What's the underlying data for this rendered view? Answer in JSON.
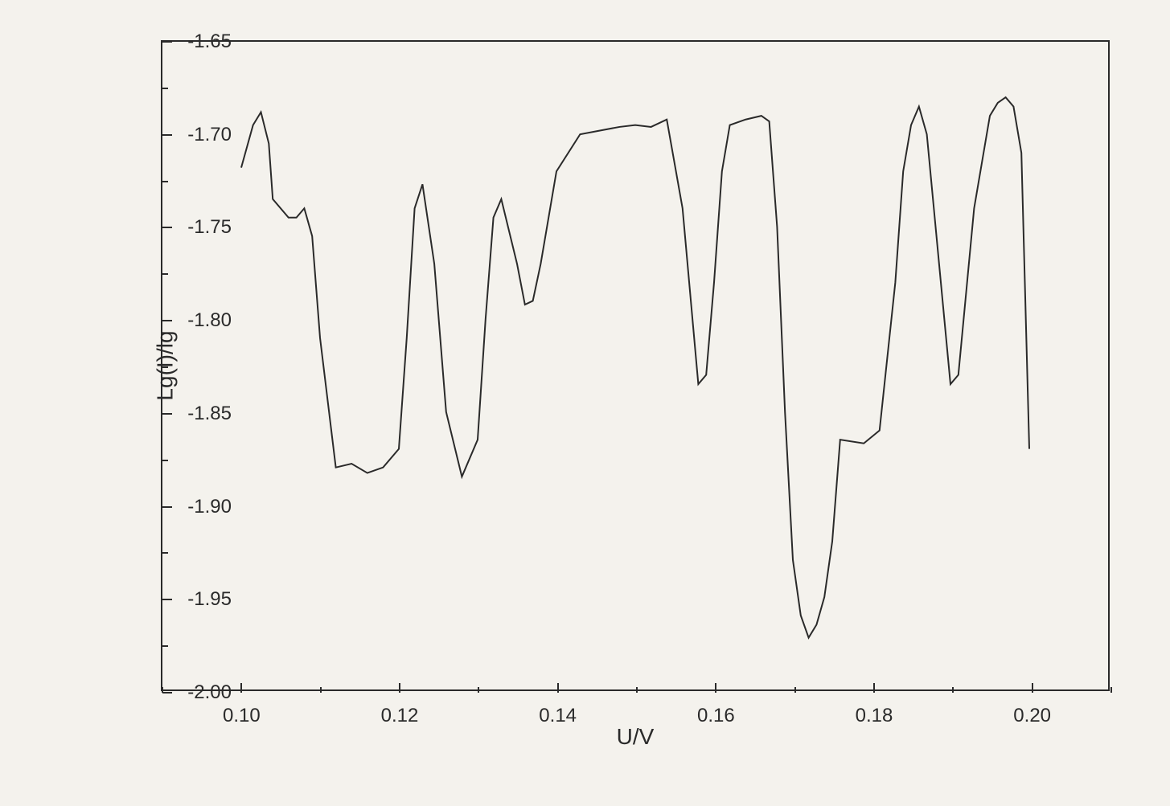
{
  "chart": {
    "type": "line",
    "background_color": "#f4f2ed",
    "axis_color": "#2a2a2a",
    "line_color": "#2a2a2a",
    "line_width": 2,
    "x_axis": {
      "label": "U/V",
      "min": 0.09,
      "max": 0.21,
      "ticks": [
        0.1,
        0.12,
        0.14,
        0.16,
        0.18,
        0.2
      ],
      "tick_labels": [
        "0.10",
        "0.12",
        "0.14",
        "0.16",
        "0.18",
        "0.20"
      ],
      "minor_tick_step": 0.01,
      "label_fontsize": 28,
      "tick_fontsize": 24
    },
    "y_axis": {
      "label": "Lg(I)/lg",
      "min": -2.0,
      "max": -1.65,
      "ticks": [
        -2.0,
        -1.95,
        -1.9,
        -1.85,
        -1.8,
        -1.75,
        -1.7,
        -1.65
      ],
      "tick_labels": [
        "-2.00",
        "-1.95",
        "-1.90",
        "-1.85",
        "-1.80",
        "-1.75",
        "-1.70",
        "-1.65"
      ],
      "minor_tick_step": 0.025,
      "label_fontsize": 28,
      "tick_fontsize": 24
    },
    "series": {
      "x": [
        0.1,
        0.1015,
        0.1025,
        0.1035,
        0.104,
        0.106,
        0.107,
        0.108,
        0.109,
        0.11,
        0.112,
        0.114,
        0.116,
        0.118,
        0.12,
        0.121,
        0.122,
        0.123,
        0.1245,
        0.126,
        0.128,
        0.13,
        0.131,
        0.132,
        0.133,
        0.135,
        0.136,
        0.137,
        0.138,
        0.14,
        0.143,
        0.148,
        0.15,
        0.152,
        0.154,
        0.156,
        0.158,
        0.159,
        0.16,
        0.161,
        0.162,
        0.164,
        0.166,
        0.167,
        0.168,
        0.169,
        0.17,
        0.171,
        0.172,
        0.173,
        0.174,
        0.175,
        0.176,
        0.179,
        0.181,
        0.183,
        0.184,
        0.185,
        0.186,
        0.187,
        0.189,
        0.19,
        0.191,
        0.193,
        0.195,
        0.196,
        0.197,
        0.198,
        0.199,
        0.2
      ],
      "y": [
        -1.718,
        -1.695,
        -1.688,
        -1.705,
        -1.735,
        -1.745,
        -1.745,
        -1.74,
        -1.755,
        -1.81,
        -1.88,
        -1.878,
        -1.883,
        -1.88,
        -1.87,
        -1.81,
        -1.74,
        -1.727,
        -1.77,
        -1.85,
        -1.885,
        -1.865,
        -1.8,
        -1.745,
        -1.735,
        -1.77,
        -1.792,
        -1.79,
        -1.77,
        -1.72,
        -1.7,
        -1.696,
        -1.695,
        -1.696,
        -1.692,
        -1.74,
        -1.835,
        -1.83,
        -1.78,
        -1.72,
        -1.695,
        -1.692,
        -1.69,
        -1.693,
        -1.75,
        -1.85,
        -1.93,
        -1.96,
        -1.972,
        -1.965,
        -1.95,
        -1.92,
        -1.865,
        -1.867,
        -1.86,
        -1.78,
        -1.72,
        -1.695,
        -1.685,
        -1.7,
        -1.79,
        -1.835,
        -1.83,
        -1.74,
        -1.69,
        -1.683,
        -1.68,
        -1.685,
        -1.71,
        -1.87
      ]
    }
  }
}
